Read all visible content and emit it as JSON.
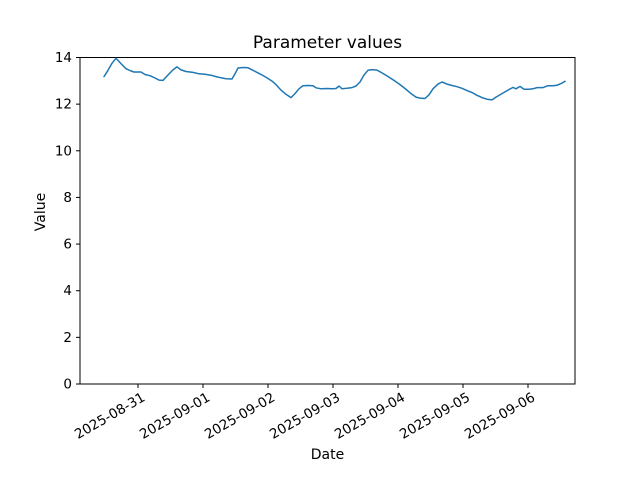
{
  "chart_data": {
    "type": "line",
    "title": "Parameter values",
    "xlabel": "Date",
    "ylabel": "Value",
    "grid": false,
    "legend": "none",
    "line_color": "#1f77b4",
    "background_color": "#ffffff",
    "ylim": [
      0,
      14
    ],
    "y_ticks": [
      0,
      2,
      4,
      6,
      8,
      10,
      12,
      14
    ],
    "x_tick_labels": [
      "2025-08-31",
      "2025-09-01",
      "2025-09-02",
      "2025-09-03",
      "2025-09-04",
      "2025-09-05",
      "2025-09-06"
    ],
    "x_tick_days": [
      0,
      1,
      2,
      3,
      4,
      5,
      6
    ],
    "x_unit": "days since 2025-08-31 00:00",
    "xlim_days": [
      -0.892,
      6.723
    ],
    "series": [
      {
        "name": "Parameter values",
        "t_days": [
          -0.523,
          -0.462,
          -0.4,
          -0.338,
          -0.262,
          -0.185,
          -0.108,
          -0.062,
          0.046,
          0.108,
          0.185,
          0.262,
          0.323,
          0.385,
          0.462,
          0.538,
          0.6,
          0.662,
          0.738,
          0.846,
          0.938,
          1.031,
          1.123,
          1.2,
          1.277,
          1.354,
          1.446,
          1.492,
          1.538,
          1.615,
          1.692,
          1.769,
          1.846,
          1.923,
          2.0,
          2.062,
          2.123,
          2.2,
          2.277,
          2.354,
          2.415,
          2.477,
          2.538,
          2.615,
          2.692,
          2.738,
          2.815,
          2.908,
          2.985,
          3.046,
          3.092,
          3.138,
          3.215,
          3.292,
          3.354,
          3.415,
          3.477,
          3.538,
          3.6,
          3.677,
          3.754,
          3.831,
          3.923,
          4.015,
          4.108,
          4.2,
          4.277,
          4.338,
          4.415,
          4.477,
          4.538,
          4.615,
          4.677,
          4.754,
          4.831,
          4.908,
          4.985,
          5.062,
          5.138,
          5.215,
          5.292,
          5.369,
          5.446,
          5.508,
          5.6,
          5.692,
          5.769,
          5.815,
          5.877,
          5.938,
          6.015,
          6.077,
          6.138,
          6.231,
          6.308,
          6.385,
          6.446,
          6.508,
          6.569
        ],
        "values": [
          13.18,
          13.45,
          13.75,
          13.97,
          13.74,
          13.52,
          13.42,
          13.38,
          13.38,
          13.27,
          13.22,
          13.12,
          13.03,
          13.02,
          13.25,
          13.47,
          13.6,
          13.47,
          13.4,
          13.36,
          13.3,
          13.28,
          13.24,
          13.18,
          13.13,
          13.09,
          13.08,
          13.3,
          13.55,
          13.57,
          13.56,
          13.45,
          13.34,
          13.23,
          13.1,
          12.99,
          12.84,
          12.6,
          12.42,
          12.28,
          12.45,
          12.66,
          12.79,
          12.8,
          12.79,
          12.7,
          12.66,
          12.67,
          12.66,
          12.67,
          12.78,
          12.66,
          12.68,
          12.71,
          12.78,
          12.95,
          13.25,
          13.45,
          13.48,
          13.46,
          13.34,
          13.21,
          13.05,
          12.87,
          12.67,
          12.45,
          12.3,
          12.26,
          12.24,
          12.4,
          12.66,
          12.86,
          12.95,
          12.86,
          12.8,
          12.75,
          12.68,
          12.58,
          12.5,
          12.38,
          12.28,
          12.21,
          12.18,
          12.3,
          12.45,
          12.6,
          12.72,
          12.66,
          12.76,
          12.64,
          12.64,
          12.66,
          12.71,
          12.71,
          12.79,
          12.79,
          12.81,
          12.88,
          12.98
        ]
      }
    ]
  }
}
